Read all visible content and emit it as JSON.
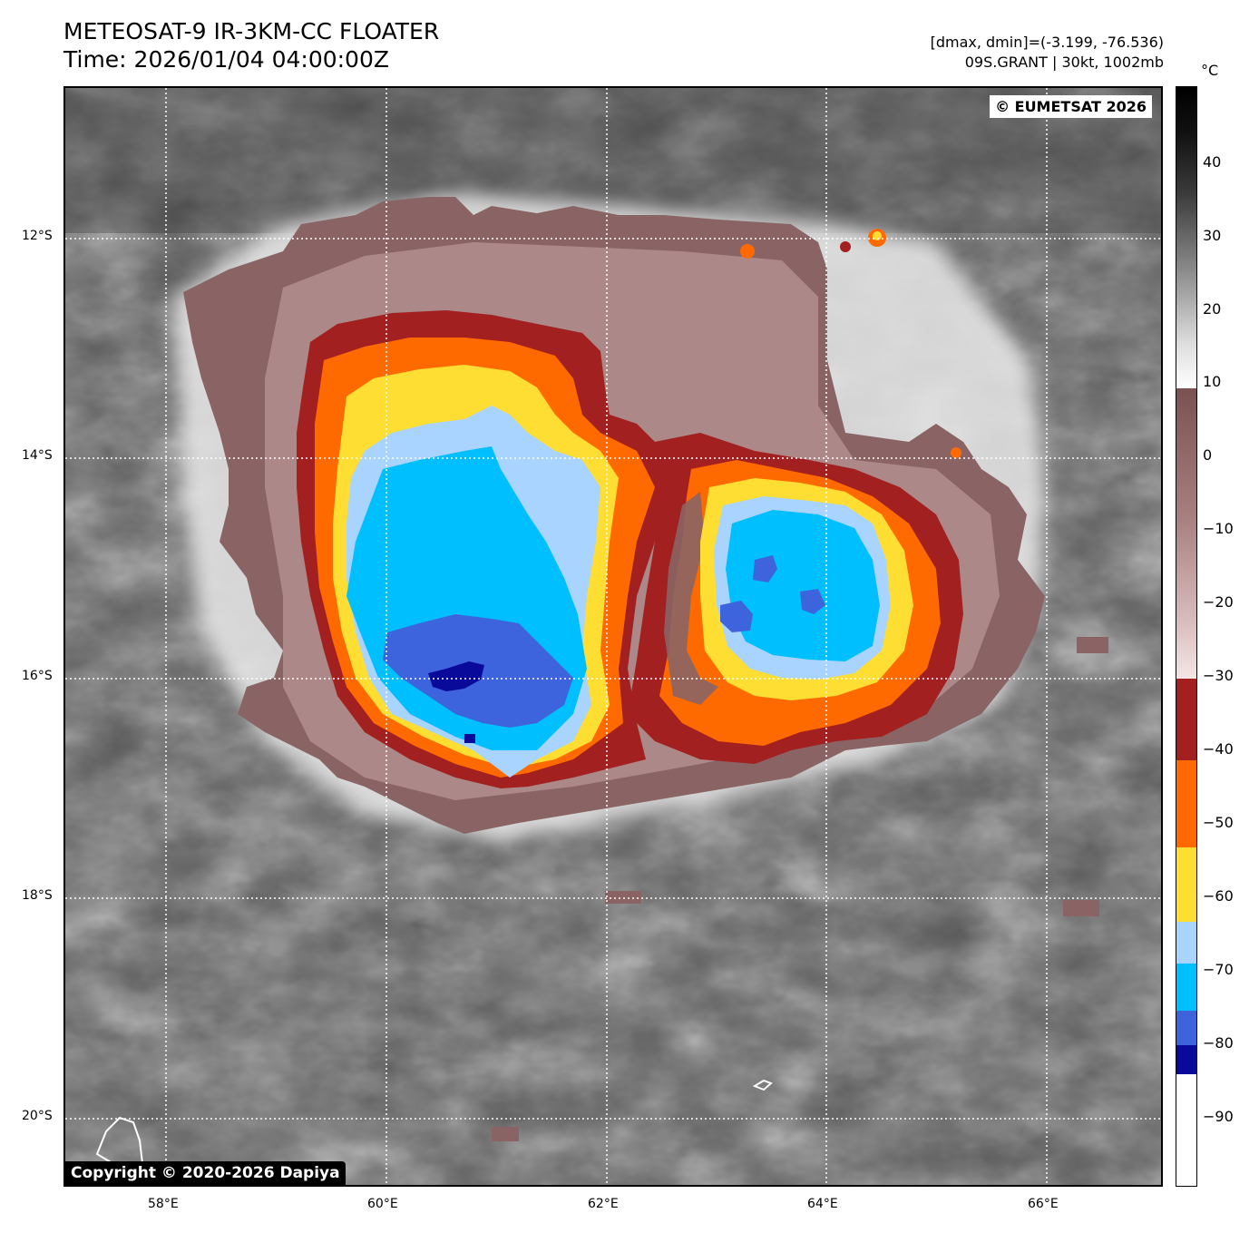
{
  "header": {
    "title_line1": "METEOSAT-9 IR-3KM-CC FLOATER",
    "title_line2": "Time: 2026/01/04 04:00:00Z",
    "info_line1": "[dmax, dmin]=(-3.199, -76.536)",
    "info_line2": "09S.GRANT | 30kt, 1002mb"
  },
  "credits": {
    "top_right": "© EUMETSAT 2026",
    "bottom_left": "Copyright © 2020-2026 Dapiya"
  },
  "axes": {
    "lat_labels": [
      "12°S",
      "14°S",
      "16°S",
      "18°S",
      "20°S"
    ],
    "lon_labels": [
      "58°E",
      "60°E",
      "62°E",
      "64°E",
      "66°E"
    ]
  },
  "colorbar": {
    "unit": "°C",
    "ticks": [
      "40",
      "30",
      "20",
      "10",
      "0",
      "−10",
      "−20",
      "−30",
      "−40",
      "−50",
      "−60",
      "−70",
      "−80",
      "−90"
    ]
  },
  "colors": {
    "dark_red": "#a32020",
    "orange": "#ff6a00",
    "yellow": "#ffde33",
    "light_blue": "#a8d4ff",
    "cyan": "#00bfff",
    "royal_blue": "#3d63dd",
    "navy": "#0a0a9a",
    "brown_pink": "#8a6464"
  }
}
